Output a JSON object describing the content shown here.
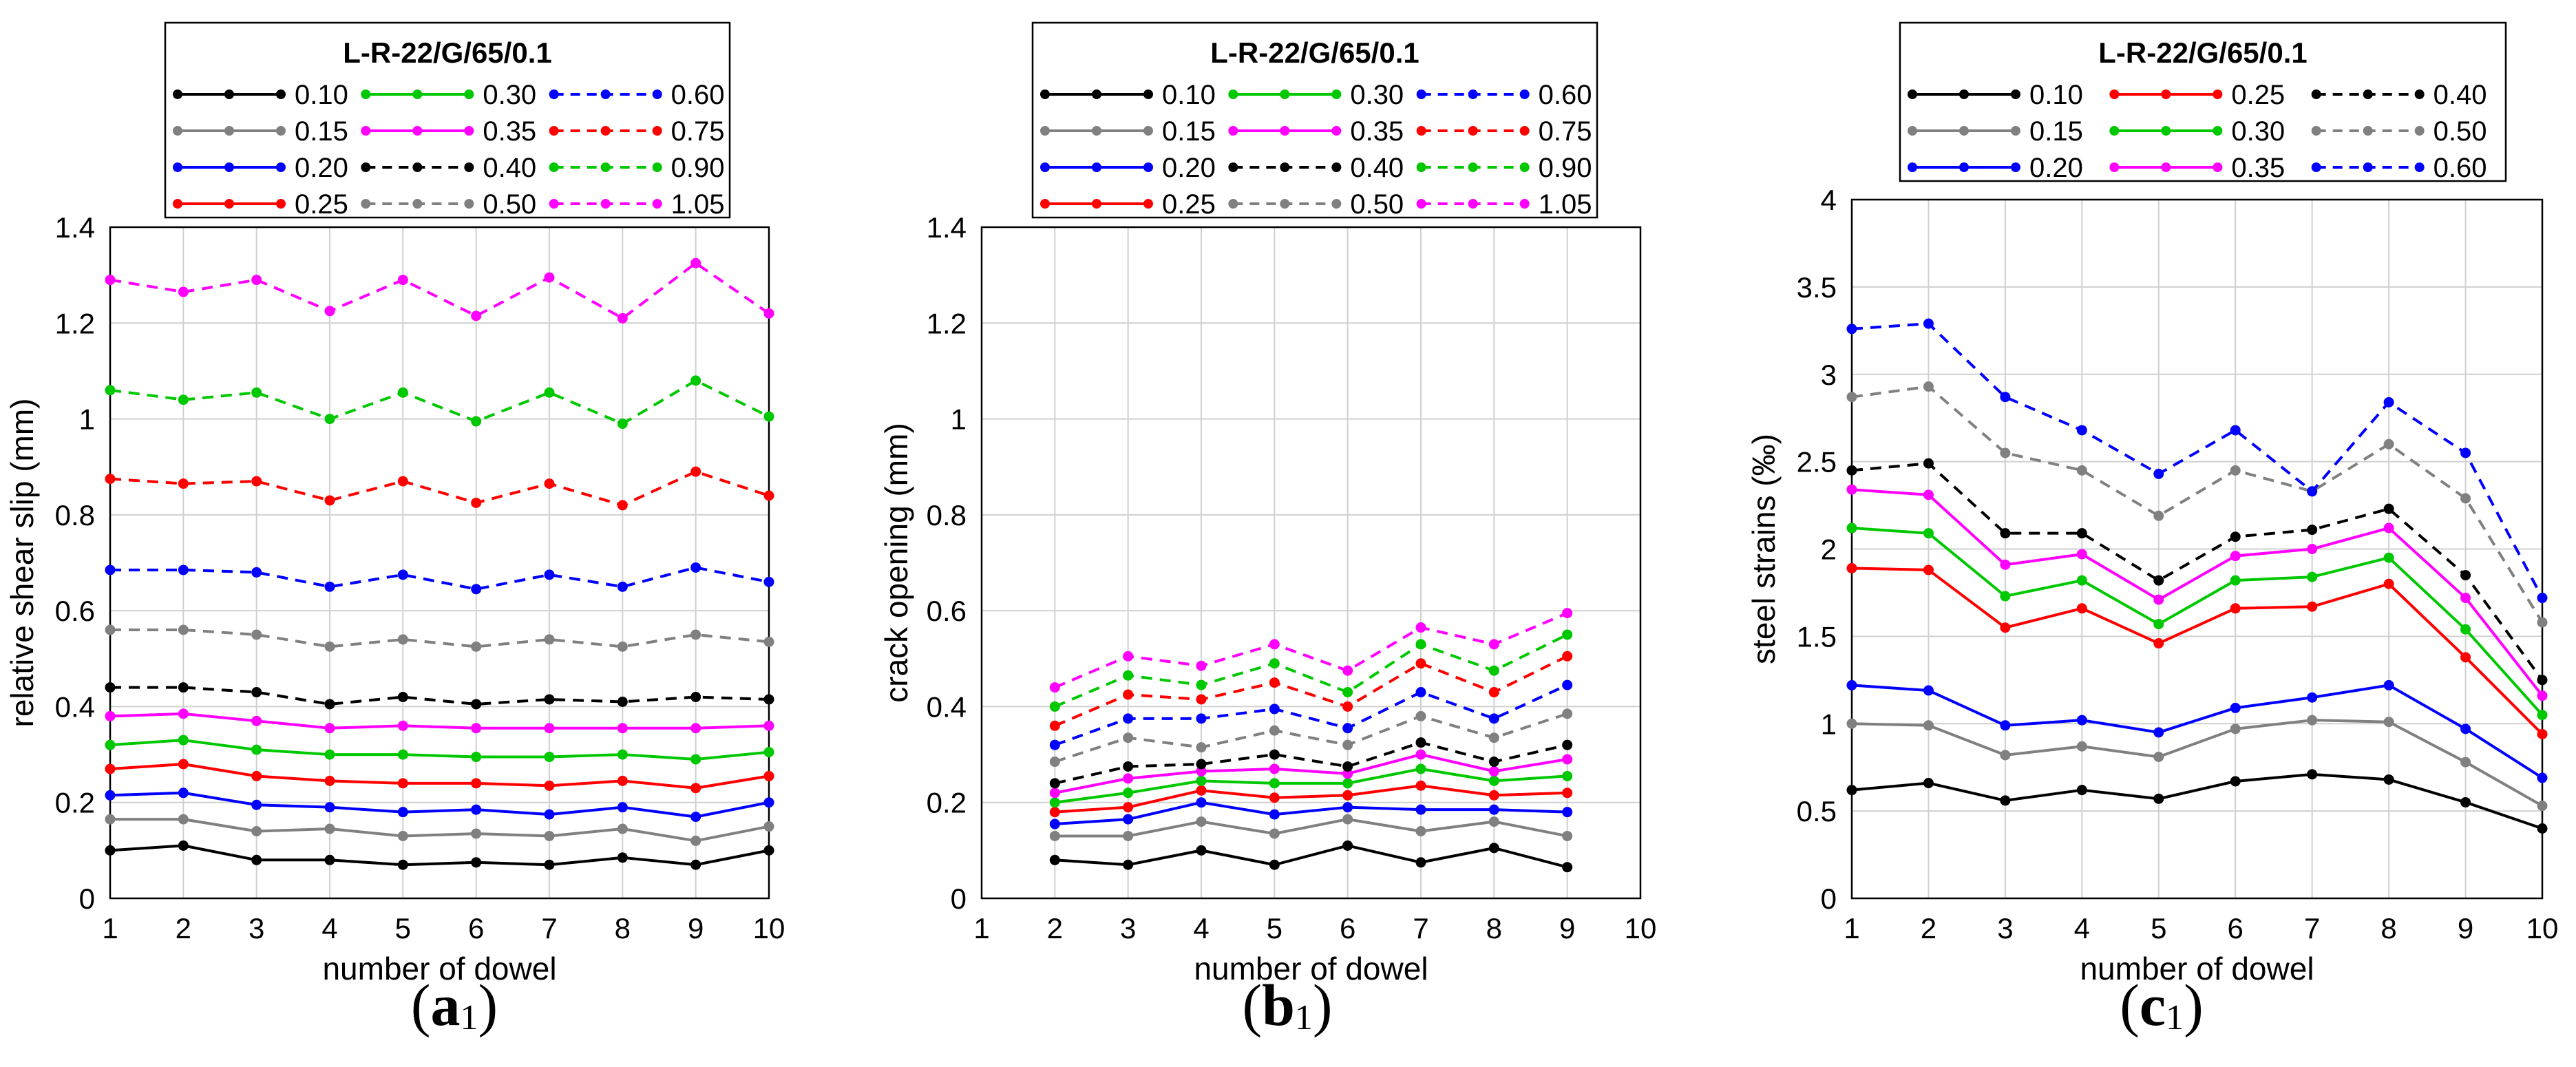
{
  "chart_data": [
    {
      "panel_label": {
        "letter": "a",
        "index": "1"
      },
      "type": "line",
      "title": "L-R-22/G/65/0.1",
      "xlabel": "number of dowel",
      "ylabel": "relative shear slip (mm)",
      "xlim": [
        1,
        10
      ],
      "ylim": [
        0,
        1.4
      ],
      "xticks": [
        1,
        2,
        3,
        4,
        5,
        6,
        7,
        8,
        9,
        10
      ],
      "yticks": [
        0,
        0.2,
        0.4,
        0.6,
        0.8,
        1,
        1.2,
        1.4
      ],
      "ytick_labels": [
        "0",
        "0.2",
        "0.4",
        "0.6",
        "0.8",
        "1",
        "1.2",
        "1.4"
      ],
      "grid": true,
      "legend_columns": [
        [
          "0.10",
          "0.15",
          "0.20",
          "0.25"
        ],
        [
          "0.30",
          "0.35",
          "0.40",
          "0.50"
        ],
        [
          "0.60",
          "0.75",
          "0.90",
          "1.05"
        ]
      ],
      "series": [
        {
          "name": "0.10",
          "color": "#000000",
          "dashed": false,
          "x": [
            1,
            2,
            3,
            4,
            5,
            6,
            7,
            8,
            9,
            10
          ],
          "values": [
            0.1,
            0.11,
            0.08,
            0.08,
            0.07,
            0.075,
            0.07,
            0.085,
            0.07,
            0.1
          ]
        },
        {
          "name": "0.15",
          "color": "#808080",
          "dashed": false,
          "x": [
            1,
            2,
            3,
            4,
            5,
            6,
            7,
            8,
            9,
            10
          ],
          "values": [
            0.165,
            0.165,
            0.14,
            0.145,
            0.13,
            0.135,
            0.13,
            0.145,
            0.12,
            0.15
          ]
        },
        {
          "name": "0.20",
          "color": "#0000ff",
          "dashed": false,
          "x": [
            1,
            2,
            3,
            4,
            5,
            6,
            7,
            8,
            9,
            10
          ],
          "values": [
            0.215,
            0.22,
            0.195,
            0.19,
            0.18,
            0.185,
            0.175,
            0.19,
            0.17,
            0.2
          ]
        },
        {
          "name": "0.25",
          "color": "#ff0000",
          "dashed": false,
          "x": [
            1,
            2,
            3,
            4,
            5,
            6,
            7,
            8,
            9,
            10
          ],
          "values": [
            0.27,
            0.28,
            0.255,
            0.245,
            0.24,
            0.24,
            0.235,
            0.245,
            0.23,
            0.255
          ]
        },
        {
          "name": "0.30",
          "color": "#00c800",
          "dashed": false,
          "x": [
            1,
            2,
            3,
            4,
            5,
            6,
            7,
            8,
            9,
            10
          ],
          "values": [
            0.32,
            0.33,
            0.31,
            0.3,
            0.3,
            0.295,
            0.295,
            0.3,
            0.29,
            0.305
          ]
        },
        {
          "name": "0.35",
          "color": "#ff00ff",
          "dashed": false,
          "x": [
            1,
            2,
            3,
            4,
            5,
            6,
            7,
            8,
            9,
            10
          ],
          "values": [
            0.38,
            0.385,
            0.37,
            0.355,
            0.36,
            0.355,
            0.355,
            0.355,
            0.355,
            0.36
          ]
        },
        {
          "name": "0.40",
          "color": "#000000",
          "dashed": true,
          "x": [
            1,
            2,
            3,
            4,
            5,
            6,
            7,
            8,
            9,
            10
          ],
          "values": [
            0.44,
            0.44,
            0.43,
            0.405,
            0.42,
            0.405,
            0.415,
            0.41,
            0.42,
            0.415
          ]
        },
        {
          "name": "0.50",
          "color": "#808080",
          "dashed": true,
          "x": [
            1,
            2,
            3,
            4,
            5,
            6,
            7,
            8,
            9,
            10
          ],
          "values": [
            0.56,
            0.56,
            0.55,
            0.525,
            0.54,
            0.525,
            0.54,
            0.525,
            0.55,
            0.535
          ]
        },
        {
          "name": "0.60",
          "color": "#0000ff",
          "dashed": true,
          "x": [
            1,
            2,
            3,
            4,
            5,
            6,
            7,
            8,
            9,
            10
          ],
          "values": [
            0.685,
            0.685,
            0.68,
            0.65,
            0.675,
            0.645,
            0.675,
            0.65,
            0.69,
            0.66
          ]
        },
        {
          "name": "0.75",
          "color": "#ff0000",
          "dashed": true,
          "x": [
            1,
            2,
            3,
            4,
            5,
            6,
            7,
            8,
            9,
            10
          ],
          "values": [
            0.875,
            0.865,
            0.87,
            0.83,
            0.87,
            0.825,
            0.865,
            0.82,
            0.89,
            0.84
          ]
        },
        {
          "name": "0.90",
          "color": "#00c800",
          "dashed": true,
          "x": [
            1,
            2,
            3,
            4,
            5,
            6,
            7,
            8,
            9,
            10
          ],
          "values": [
            1.06,
            1.04,
            1.055,
            1.0,
            1.055,
            0.995,
            1.055,
            0.99,
            1.08,
            1.005
          ]
        },
        {
          "name": "1.05",
          "color": "#ff00ff",
          "dashed": true,
          "x": [
            1,
            2,
            3,
            4,
            5,
            6,
            7,
            8,
            9,
            10
          ],
          "values": [
            1.29,
            1.265,
            1.29,
            1.225,
            1.29,
            1.215,
            1.295,
            1.21,
            1.325,
            1.22
          ]
        }
      ]
    },
    {
      "panel_label": {
        "letter": "b",
        "index": "1"
      },
      "type": "line",
      "title": "L-R-22/G/65/0.1",
      "xlabel": "number of dowel",
      "ylabel": "crack opening (mm)",
      "xlim": [
        1,
        10
      ],
      "ylim": [
        0,
        1.4
      ],
      "xticks": [
        1,
        2,
        3,
        4,
        5,
        6,
        7,
        8,
        9,
        10
      ],
      "yticks": [
        0,
        0.2,
        0.4,
        0.6,
        0.8,
        1,
        1.2,
        1.4
      ],
      "ytick_labels": [
        "0",
        "0.2",
        "0.4",
        "0.6",
        "0.8",
        "1",
        "1.2",
        "1.4"
      ],
      "grid": true,
      "legend_columns": [
        [
          "0.10",
          "0.15",
          "0.20",
          "0.25"
        ],
        [
          "0.30",
          "0.35",
          "0.40",
          "0.50"
        ],
        [
          "0.60",
          "0.75",
          "0.90",
          "1.05"
        ]
      ],
      "series": [
        {
          "name": "0.10",
          "color": "#000000",
          "dashed": false,
          "x": [
            2,
            3,
            4,
            5,
            6,
            7,
            8,
            9
          ],
          "values": [
            0.08,
            0.07,
            0.1,
            0.07,
            0.11,
            0.075,
            0.105,
            0.065
          ]
        },
        {
          "name": "0.15",
          "color": "#808080",
          "dashed": false,
          "x": [
            2,
            3,
            4,
            5,
            6,
            7,
            8,
            9
          ],
          "values": [
            0.13,
            0.13,
            0.16,
            0.135,
            0.165,
            0.14,
            0.16,
            0.13
          ]
        },
        {
          "name": "0.20",
          "color": "#0000ff",
          "dashed": false,
          "x": [
            2,
            3,
            4,
            5,
            6,
            7,
            8,
            9
          ],
          "values": [
            0.155,
            0.165,
            0.2,
            0.175,
            0.19,
            0.185,
            0.185,
            0.18
          ]
        },
        {
          "name": "0.25",
          "color": "#ff0000",
          "dashed": false,
          "x": [
            2,
            3,
            4,
            5,
            6,
            7,
            8,
            9
          ],
          "values": [
            0.18,
            0.19,
            0.225,
            0.21,
            0.215,
            0.235,
            0.215,
            0.22
          ]
        },
        {
          "name": "0.30",
          "color": "#00c800",
          "dashed": false,
          "x": [
            2,
            3,
            4,
            5,
            6,
            7,
            8,
            9
          ],
          "values": [
            0.2,
            0.22,
            0.245,
            0.24,
            0.24,
            0.27,
            0.245,
            0.255
          ]
        },
        {
          "name": "0.35",
          "color": "#ff00ff",
          "dashed": false,
          "x": [
            2,
            3,
            4,
            5,
            6,
            7,
            8,
            9
          ],
          "values": [
            0.22,
            0.25,
            0.265,
            0.27,
            0.26,
            0.3,
            0.265,
            0.29
          ]
        },
        {
          "name": "0.40",
          "color": "#000000",
          "dashed": true,
          "x": [
            2,
            3,
            4,
            5,
            6,
            7,
            8,
            9
          ],
          "values": [
            0.24,
            0.275,
            0.28,
            0.3,
            0.275,
            0.325,
            0.285,
            0.32
          ]
        },
        {
          "name": "0.50",
          "color": "#808080",
          "dashed": true,
          "x": [
            2,
            3,
            4,
            5,
            6,
            7,
            8,
            9
          ],
          "values": [
            0.285,
            0.335,
            0.315,
            0.35,
            0.32,
            0.38,
            0.335,
            0.385
          ]
        },
        {
          "name": "0.60",
          "color": "#0000ff",
          "dashed": true,
          "x": [
            2,
            3,
            4,
            5,
            6,
            7,
            8,
            9
          ],
          "values": [
            0.32,
            0.375,
            0.375,
            0.395,
            0.355,
            0.43,
            0.375,
            0.445
          ]
        },
        {
          "name": "0.75",
          "color": "#ff0000",
          "dashed": true,
          "x": [
            2,
            3,
            4,
            5,
            6,
            7,
            8,
            9
          ],
          "values": [
            0.36,
            0.425,
            0.415,
            0.45,
            0.4,
            0.49,
            0.43,
            0.505
          ]
        },
        {
          "name": "0.90",
          "color": "#00c800",
          "dashed": true,
          "x": [
            2,
            3,
            4,
            5,
            6,
            7,
            8,
            9
          ],
          "values": [
            0.4,
            0.465,
            0.445,
            0.49,
            0.43,
            0.53,
            0.475,
            0.55
          ]
        },
        {
          "name": "1.05",
          "color": "#ff00ff",
          "dashed": true,
          "x": [
            2,
            3,
            4,
            5,
            6,
            7,
            8,
            9
          ],
          "values": [
            0.44,
            0.505,
            0.485,
            0.53,
            0.475,
            0.565,
            0.53,
            0.595
          ]
        }
      ]
    },
    {
      "panel_label": {
        "letter": "c",
        "index": "1"
      },
      "type": "line",
      "title": "L-R-22/G/65/0.1",
      "xlabel": "number of dowel",
      "ylabel": "steel strains (‰)",
      "xlim": [
        1,
        10
      ],
      "ylim": [
        0,
        4
      ],
      "xticks": [
        1,
        2,
        3,
        4,
        5,
        6,
        7,
        8,
        9,
        10
      ],
      "yticks": [
        0,
        0.5,
        1,
        1.5,
        2,
        2.5,
        3,
        3.5,
        4
      ],
      "ytick_labels": [
        "0",
        "0.5",
        "1",
        "1.5",
        "2",
        "2.5",
        "3",
        "3.5",
        "4"
      ],
      "grid": true,
      "legend_columns": [
        [
          "0.10",
          "0.15",
          "0.20"
        ],
        [
          "0.25",
          "0.30",
          "0.35"
        ],
        [
          "0.40",
          "0.50",
          "0.60"
        ]
      ],
      "series": [
        {
          "name": "0.10",
          "color": "#000000",
          "dashed": false,
          "x": [
            1,
            2,
            3,
            4,
            5,
            6,
            7,
            8,
            9,
            10
          ],
          "values": [
            0.62,
            0.66,
            0.56,
            0.62,
            0.57,
            0.67,
            0.71,
            0.68,
            0.55,
            0.4
          ]
        },
        {
          "name": "0.15",
          "color": "#808080",
          "dashed": false,
          "x": [
            1,
            2,
            3,
            4,
            5,
            6,
            7,
            8,
            9,
            10
          ],
          "values": [
            1.0,
            0.99,
            0.82,
            0.87,
            0.81,
            0.97,
            1.02,
            1.01,
            0.78,
            0.53
          ]
        },
        {
          "name": "0.20",
          "color": "#0000ff",
          "dashed": false,
          "x": [
            1,
            2,
            3,
            4,
            5,
            6,
            7,
            8,
            9,
            10
          ],
          "values": [
            1.22,
            1.19,
            0.99,
            1.02,
            0.95,
            1.09,
            1.15,
            1.22,
            0.97,
            0.69
          ]
        },
        {
          "name": "0.25",
          "color": "#ff0000",
          "dashed": false,
          "x": [
            1,
            2,
            3,
            4,
            5,
            6,
            7,
            8,
            9,
            10
          ],
          "values": [
            1.89,
            1.88,
            1.55,
            1.66,
            1.46,
            1.66,
            1.67,
            1.8,
            1.38,
            0.94
          ]
        },
        {
          "name": "0.30",
          "color": "#00c800",
          "dashed": false,
          "x": [
            1,
            2,
            3,
            4,
            5,
            6,
            7,
            8,
            9,
            10
          ],
          "values": [
            2.12,
            2.09,
            1.73,
            1.82,
            1.57,
            1.82,
            1.84,
            1.95,
            1.54,
            1.05
          ]
        },
        {
          "name": "0.35",
          "color": "#ff00ff",
          "dashed": false,
          "x": [
            1,
            2,
            3,
            4,
            5,
            6,
            7,
            8,
            9,
            10
          ],
          "values": [
            2.34,
            2.31,
            1.91,
            1.97,
            1.71,
            1.96,
            2.0,
            2.12,
            1.72,
            1.16
          ]
        },
        {
          "name": "0.40",
          "color": "#000000",
          "dashed": true,
          "x": [
            1,
            2,
            3,
            4,
            5,
            6,
            7,
            8,
            9,
            10
          ],
          "values": [
            2.45,
            2.49,
            2.09,
            2.09,
            1.82,
            2.07,
            2.11,
            2.23,
            1.85,
            1.25
          ]
        },
        {
          "name": "0.50",
          "color": "#808080",
          "dashed": true,
          "x": [
            1,
            2,
            3,
            4,
            5,
            6,
            7,
            8,
            9,
            10
          ],
          "values": [
            2.87,
            2.93,
            2.55,
            2.45,
            2.19,
            2.45,
            2.33,
            2.6,
            2.29,
            1.58
          ]
        },
        {
          "name": "0.60",
          "color": "#0000ff",
          "dashed": true,
          "x": [
            1,
            2,
            3,
            4,
            5,
            6,
            7,
            8,
            9,
            10
          ],
          "values": [
            3.26,
            3.29,
            2.87,
            2.68,
            2.43,
            2.68,
            2.33,
            2.84,
            2.55,
            1.72
          ]
        }
      ]
    }
  ]
}
